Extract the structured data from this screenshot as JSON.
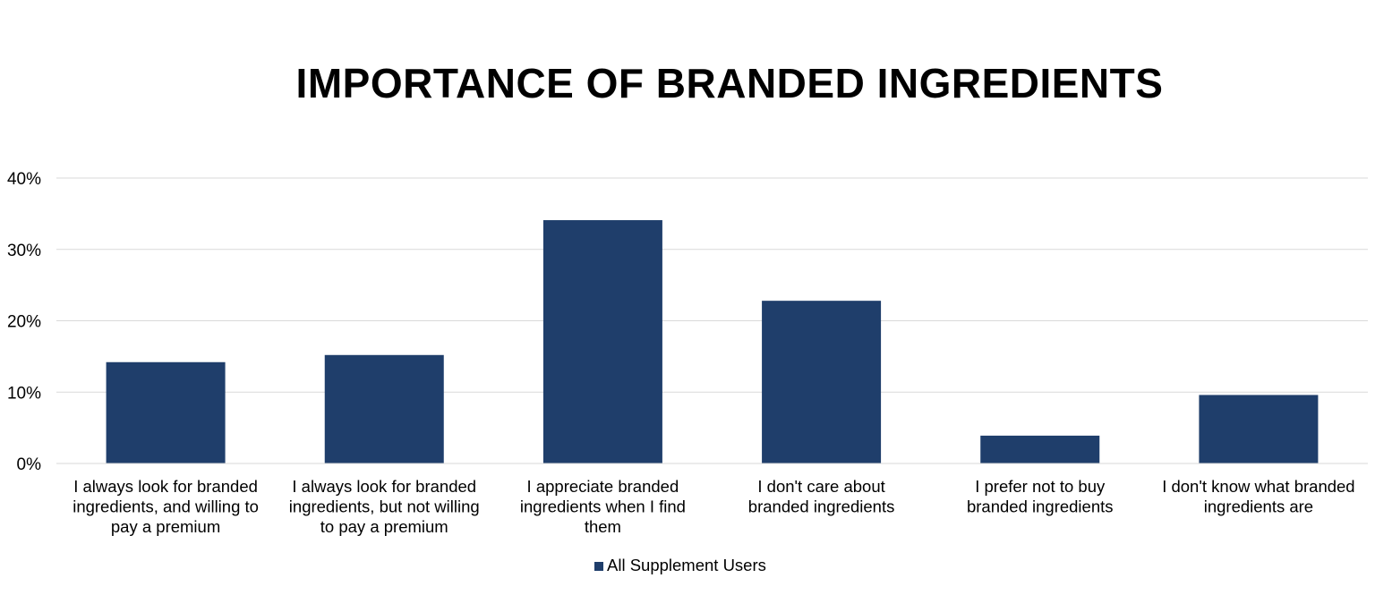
{
  "chart_data": {
    "type": "bar",
    "title": "IMPORTANCE OF BRANDED INGREDIENTS",
    "xlabel": "",
    "ylabel": "",
    "ylim": [
      0,
      40
    ],
    "yticks": [
      "0%",
      "10%",
      "20%",
      "30%",
      "40%"
    ],
    "ytick_values": [
      0,
      10,
      20,
      30,
      40
    ],
    "grid": true,
    "legend_position": "bottom",
    "categories": [
      [
        "I always look for branded",
        "ingredients, and willing to",
        "pay a premium"
      ],
      [
        "I always look for branded",
        "ingredients, but not willing",
        "to pay a premium"
      ],
      [
        "I appreciate branded",
        "ingredients when I find",
        "them"
      ],
      [
        "I don't care about",
        "branded ingredients"
      ],
      [
        "I prefer not to buy",
        "branded ingredients"
      ],
      [
        "I don't know what branded",
        "ingredients are"
      ]
    ],
    "series": [
      {
        "name": "All Supplement Users",
        "color": "#1f3e6b",
        "values": [
          14.2,
          15.2,
          34.1,
          22.8,
          3.9,
          9.6
        ]
      }
    ]
  }
}
